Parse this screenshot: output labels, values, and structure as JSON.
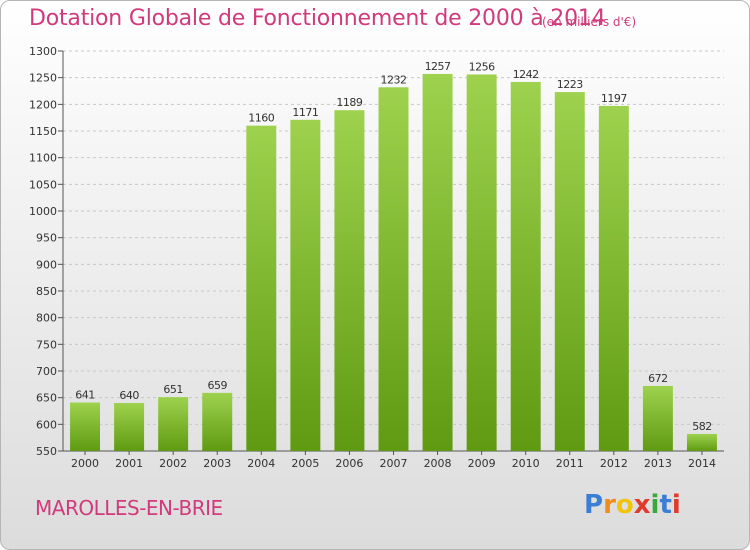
{
  "header": {
    "title": "Dotation Globale de Fonctionnement de 2000 à 2014",
    "unit": "(en milliers d'€)"
  },
  "footer": {
    "commune": "MAROLLES-EN-BRIE",
    "logo_text": "Proxiti"
  },
  "colors": {
    "title": "#d13a7c",
    "bar_top": "#9ed24e",
    "bar_bottom": "#5f9a12",
    "grid": "#c8c8c8",
    "axis_text": "#333333"
  },
  "chart_data": {
    "type": "bar",
    "title": "Dotation Globale de Fonctionnement de 2000 à 2014",
    "subtitle": "(en milliers d'€)",
    "xlabel": "",
    "ylabel": "",
    "categories": [
      "2000",
      "2001",
      "2002",
      "2003",
      "2004",
      "2005",
      "2006",
      "2007",
      "2008",
      "2009",
      "2010",
      "2011",
      "2012",
      "2013",
      "2014"
    ],
    "values": [
      641,
      640,
      651,
      659,
      1160,
      1171,
      1189,
      1232,
      1257,
      1256,
      1242,
      1223,
      1197,
      672,
      582
    ],
    "ylim": [
      550,
      1300
    ],
    "yticks": [
      550,
      600,
      650,
      700,
      750,
      800,
      850,
      900,
      950,
      1000,
      1050,
      1100,
      1150,
      1200,
      1250,
      1300
    ],
    "grid": "horizontal dashed",
    "legend": "none",
    "data_labels": true
  }
}
